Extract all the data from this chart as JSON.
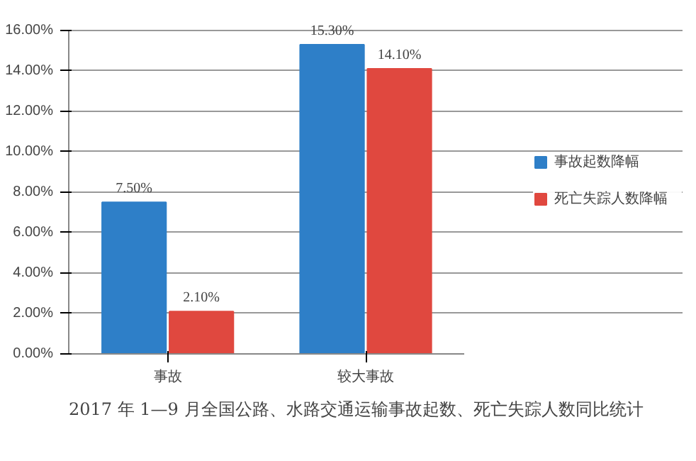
{
  "chart_data": {
    "type": "bar",
    "categories": [
      "事故",
      "较大事故"
    ],
    "series": [
      {
        "name": "事故起数降幅",
        "color": "#2e7fc8",
        "values": [
          7.5,
          15.3
        ],
        "value_labels": [
          "7.50%",
          "15.30%"
        ]
      },
      {
        "name": "死亡失踪人数降幅",
        "color": "#e0483f",
        "values": [
          2.1,
          14.1
        ],
        "value_labels": [
          "2.10%",
          "14.10%"
        ]
      }
    ],
    "ylim": [
      0,
      16
    ],
    "yticks": [
      {
        "value": 0,
        "label": "0.00%"
      },
      {
        "value": 2,
        "label": "2.00%"
      },
      {
        "value": 4,
        "label": "4.00%"
      },
      {
        "value": 6,
        "label": "6.00%"
      },
      {
        "value": 8,
        "label": "8.00%"
      },
      {
        "value": 10,
        "label": "10.00%"
      },
      {
        "value": 12,
        "label": "12.00%"
      },
      {
        "value": 14,
        "label": "14.00%"
      },
      {
        "value": 16,
        "label": "16.00%"
      }
    ],
    "grid": "y",
    "legend": "right",
    "annotations": [
      "2017 年 1—9 月全国公路、水路交通运输事故起数、死亡失踪人数同比统计"
    ]
  }
}
